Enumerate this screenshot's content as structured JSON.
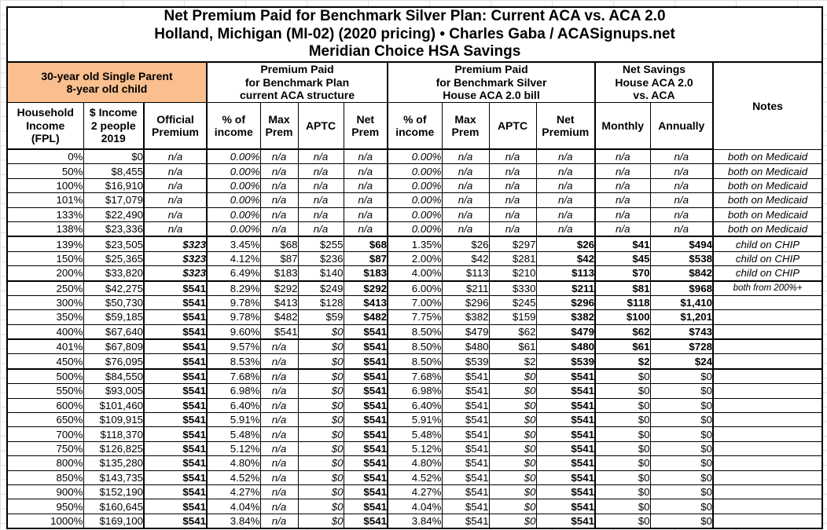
{
  "colors": {
    "orange": "#FABF8F",
    "yellow": "#FFFF99",
    "pink": "#F47FC3",
    "green": "#CCF2CC",
    "border": "#000000",
    "gridline": "#DEDEDE"
  },
  "chart_data": {
    "type": "table",
    "title": "Net Premium Paid for Benchmark Silver Plan: Current ACA vs. ACA 2.0",
    "subtitle": "Holland, Michigan (MI-02) (2020 pricing) • Charles Gaba / ACASignups.net",
    "subtitle2": "Meridian Choice HSA Savings",
    "group_headers": {
      "person": "30-year old Single Parent\n8-year old child",
      "current_aca": "Premium Paid\nfor Benchmark Plan\ncurrent ACA structure",
      "aca20": "Premium Paid\nfor Benchmark Silver\nHouse ACA 2.0 bill",
      "savings": "Net Savings\nHouse ACA 2.0\nvs. ACA",
      "notes": "Notes"
    },
    "column_headers": [
      "Household\nIncome\n(FPL)",
      "$ Income\n2 people\n2019",
      "Official\nPremium",
      "% of\nincome",
      "Max\nPrem",
      "APTC",
      "Net\nPrem",
      "% of\nincome",
      "Max\nPrem",
      "APTC",
      "Net\nPremium",
      "Monthly",
      "Annually"
    ],
    "column_keys": [
      "fpl",
      "income",
      "official-premium",
      "aca-pct-income",
      "aca-max-prem",
      "aca-aptc",
      "aca-net-prem",
      "aca2-pct-income",
      "aca2-max-prem",
      "aca2-aptc",
      "aca2-net-premium",
      "savings-monthly",
      "savings-annually",
      "notes"
    ],
    "rows": [
      {
        "cells": [
          "0%",
          "$0",
          "n/a",
          "0.00%",
          "n/a",
          "n/a",
          "n/a",
          "0.00%",
          "n/a",
          "n/a",
          "n/a",
          "n/a",
          "n/a",
          "both on Medicaid"
        ],
        "styles": [
          "w:n",
          "w:n",
          "y:i",
          "w:i",
          "w:i",
          "w:i",
          "y:i",
          "w:i",
          "w:i",
          "w:i",
          "y:i",
          "w:i",
          "w:i",
          "w:i"
        ],
        "thick_top": false
      },
      {
        "cells": [
          "50%",
          "$8,455",
          "n/a",
          "0.00%",
          "n/a",
          "n/a",
          "n/a",
          "0.00%",
          "n/a",
          "n/a",
          "n/a",
          "n/a",
          "n/a",
          "both on Medicaid"
        ],
        "styles": [
          "w:n",
          "w:n",
          "y:i",
          "w:i",
          "w:i",
          "w:i",
          "y:i",
          "w:i",
          "w:i",
          "w:i",
          "y:i",
          "w:i",
          "w:i",
          "w:i"
        ],
        "thick_top": false
      },
      {
        "cells": [
          "100%",
          "$16,910",
          "n/a",
          "0.00%",
          "n/a",
          "n/a",
          "n/a",
          "0.00%",
          "n/a",
          "n/a",
          "n/a",
          "n/a",
          "n/a",
          "both on Medicaid"
        ],
        "styles": [
          "w:n",
          "w:n",
          "y:i",
          "w:i",
          "w:i",
          "w:i",
          "y:i",
          "w:i",
          "w:i",
          "w:i",
          "y:i",
          "w:i",
          "w:i",
          "w:i"
        ],
        "thick_top": false
      },
      {
        "cells": [
          "101%",
          "$17,079",
          "n/a",
          "0.00%",
          "n/a",
          "n/a",
          "n/a",
          "0.00%",
          "n/a",
          "n/a",
          "n/a",
          "n/a",
          "n/a",
          "both on Medicaid"
        ],
        "styles": [
          "w:n",
          "w:n",
          "y:i",
          "w:i",
          "w:i",
          "w:i",
          "y:i",
          "w:i",
          "w:i",
          "w:i",
          "y:i",
          "w:i",
          "w:i",
          "w:i"
        ],
        "thick_top": false
      },
      {
        "cells": [
          "133%",
          "$22,490",
          "n/a",
          "0.00%",
          "n/a",
          "n/a",
          "n/a",
          "0.00%",
          "n/a",
          "n/a",
          "n/a",
          "n/a",
          "n/a",
          "both on Medicaid"
        ],
        "styles": [
          "w:n",
          "w:n",
          "y:i",
          "w:i",
          "w:i",
          "w:i",
          "y:i",
          "w:i",
          "w:i",
          "w:i",
          "y:i",
          "w:i",
          "w:i",
          "w:i"
        ],
        "thick_top": false
      },
      {
        "cells": [
          "138%",
          "$23,336",
          "n/a",
          "0.00%",
          "n/a",
          "n/a",
          "n/a",
          "0.00%",
          "n/a",
          "n/a",
          "n/a",
          "n/a",
          "n/a",
          "both on Medicaid"
        ],
        "styles": [
          "w:n",
          "w:n",
          "y:i",
          "w:i",
          "w:i",
          "w:i",
          "y:i",
          "w:i",
          "w:i",
          "w:i",
          "y:i",
          "w:i",
          "w:i",
          "w:i"
        ],
        "thick_top": false
      },
      {
        "cells": [
          "139%",
          "$23,505",
          "$323",
          "3.45%",
          "$68",
          "$255",
          "$68",
          "1.35%",
          "$26",
          "$297",
          "$26",
          "$41",
          "$494",
          "child on CHIP"
        ],
        "styles": [
          "w:n",
          "w:n",
          "y:bi",
          "w:n",
          "w:n",
          "w:n",
          "y:b",
          "w:n",
          "w:n",
          "w:n",
          "y:b",
          "g:b",
          "g:b",
          "w:i"
        ],
        "thick_top": true
      },
      {
        "cells": [
          "150%",
          "$25,365",
          "$323",
          "4.12%",
          "$87",
          "$236",
          "$87",
          "2.00%",
          "$42",
          "$281",
          "$42",
          "$45",
          "$538",
          "child on CHIP"
        ],
        "styles": [
          "w:n",
          "w:n",
          "y:bi",
          "w:n",
          "w:n",
          "w:n",
          "y:b",
          "w:n",
          "w:n",
          "w:n",
          "y:b",
          "g:b",
          "g:b",
          "w:i"
        ],
        "thick_top": false
      },
      {
        "cells": [
          "200%",
          "$33,820",
          "$323",
          "6.49%",
          "$183",
          "$140",
          "$183",
          "4.00%",
          "$113",
          "$210",
          "$113",
          "$70",
          "$842",
          "child on CHIP"
        ],
        "styles": [
          "w:n",
          "w:n",
          "y:bi",
          "w:n",
          "w:n",
          "w:n",
          "y:b",
          "w:n",
          "w:n",
          "w:n",
          "y:b",
          "g:b",
          "g:b",
          "w:i"
        ],
        "thick_top": false
      },
      {
        "cells": [
          "250%",
          "$42,275",
          "$541",
          "8.29%",
          "$292",
          "$249",
          "$292",
          "6.00%",
          "$211",
          "$330",
          "$211",
          "$81",
          "$968",
          "both from 200%+"
        ],
        "styles": [
          "w:n",
          "w:n",
          "y:b",
          "w:n",
          "w:n",
          "w:n",
          "y:b",
          "w:n",
          "w:n",
          "w:n",
          "y:b",
          "g:b",
          "g:b",
          "w:is"
        ],
        "thick_top": true
      },
      {
        "cells": [
          "300%",
          "$50,730",
          "$541",
          "9.78%",
          "$413",
          "$128",
          "$413",
          "7.00%",
          "$296",
          "$245",
          "$296",
          "$118",
          "$1,410",
          ""
        ],
        "styles": [
          "w:n",
          "w:n",
          "y:b",
          "w:n",
          "w:n",
          "w:n",
          "y:b",
          "w:n",
          "w:n",
          "w:n",
          "y:b",
          "g:b",
          "g:b",
          "w:n"
        ],
        "thick_top": false
      },
      {
        "cells": [
          "350%",
          "$59,185",
          "$541",
          "9.78%",
          "$482",
          "$59",
          "$482",
          "7.75%",
          "$382",
          "$159",
          "$382",
          "$100",
          "$1,201",
          ""
        ],
        "styles": [
          "w:n",
          "w:n",
          "y:b",
          "w:n",
          "w:n",
          "w:n",
          "y:b",
          "w:n",
          "w:n",
          "w:n",
          "y:b",
          "g:b",
          "g:b",
          "w:n"
        ],
        "thick_top": false
      },
      {
        "cells": [
          "400%",
          "$67,640",
          "$541",
          "9.60%",
          "$541",
          "$0",
          "$541",
          "8.50%",
          "$479",
          "$62",
          "$479",
          "$62",
          "$743",
          ""
        ],
        "styles": [
          "w:n",
          "w:n",
          "y:b",
          "w:n",
          "w:n",
          "p:i",
          "y:b",
          "w:n",
          "w:n",
          "w:n",
          "y:b",
          "g:b",
          "g:b",
          "w:n"
        ],
        "thick_top": false
      },
      {
        "cells": [
          "401%",
          "$67,809",
          "$541",
          "9.57%",
          "n/a",
          "$0",
          "$541",
          "8.50%",
          "$480",
          "$61",
          "$480",
          "$61",
          "$728",
          ""
        ],
        "styles": [
          "w:n",
          "w:n",
          "y:b",
          "w:n",
          "w:i",
          "p:i",
          "y:b",
          "w:n",
          "w:n",
          "w:n",
          "y:b",
          "g:b",
          "g:b",
          "w:n"
        ],
        "thick_top": true
      },
      {
        "cells": [
          "450%",
          "$76,095",
          "$541",
          "8.53%",
          "n/a",
          "$0",
          "$541",
          "8.50%",
          "$539",
          "$2",
          "$539",
          "$2",
          "$24",
          ""
        ],
        "styles": [
          "w:n",
          "w:n",
          "y:b",
          "w:n",
          "w:i",
          "p:i",
          "y:b",
          "w:n",
          "w:n",
          "w:n",
          "y:b",
          "g:b",
          "g:b",
          "w:n"
        ],
        "thick_top": false
      },
      {
        "cells": [
          "500%",
          "$84,550",
          "$541",
          "7.68%",
          "n/a",
          "$0",
          "$541",
          "7.68%",
          "$541",
          "$0",
          "$541",
          "$0",
          "$0",
          ""
        ],
        "styles": [
          "w:n",
          "w:n",
          "y:b",
          "w:n",
          "w:i",
          "p:i",
          "y:b",
          "w:n",
          "w:n",
          "p:i",
          "y:b",
          "w:n",
          "w:n",
          "w:n"
        ],
        "thick_top": true
      },
      {
        "cells": [
          "550%",
          "$93,005",
          "$541",
          "6.98%",
          "n/a",
          "$0",
          "$541",
          "6.98%",
          "$541",
          "$0",
          "$541",
          "$0",
          "$0",
          ""
        ],
        "styles": [
          "w:n",
          "w:n",
          "y:b",
          "w:n",
          "w:i",
          "p:i",
          "y:b",
          "w:n",
          "w:n",
          "p:i",
          "y:b",
          "w:n",
          "w:n",
          "w:n"
        ],
        "thick_top": false
      },
      {
        "cells": [
          "600%",
          "$101,460",
          "$541",
          "6.40%",
          "n/a",
          "$0",
          "$541",
          "6.40%",
          "$541",
          "$0",
          "$541",
          "$0",
          "$0",
          ""
        ],
        "styles": [
          "w:n",
          "w:n",
          "y:b",
          "w:n",
          "w:i",
          "p:i",
          "y:b",
          "w:n",
          "w:n",
          "p:i",
          "y:b",
          "w:n",
          "w:n",
          "w:n"
        ],
        "thick_top": false
      },
      {
        "cells": [
          "650%",
          "$109,915",
          "$541",
          "5.91%",
          "n/a",
          "$0",
          "$541",
          "5.91%",
          "$541",
          "$0",
          "$541",
          "$0",
          "$0",
          ""
        ],
        "styles": [
          "w:n",
          "w:n",
          "y:b",
          "w:n",
          "w:i",
          "p:i",
          "y:b",
          "w:n",
          "w:n",
          "p:i",
          "y:b",
          "w:n",
          "w:n",
          "w:n"
        ],
        "thick_top": false
      },
      {
        "cells": [
          "700%",
          "$118,370",
          "$541",
          "5.48%",
          "n/a",
          "$0",
          "$541",
          "5.48%",
          "$541",
          "$0",
          "$541",
          "$0",
          "$0",
          ""
        ],
        "styles": [
          "w:n",
          "w:n",
          "y:b",
          "w:n",
          "w:i",
          "p:i",
          "y:b",
          "w:n",
          "w:n",
          "p:i",
          "y:b",
          "w:n",
          "w:n",
          "w:n"
        ],
        "thick_top": false
      },
      {
        "cells": [
          "750%",
          "$126,825",
          "$541",
          "5.12%",
          "n/a",
          "$0",
          "$541",
          "5.12%",
          "$541",
          "$0",
          "$541",
          "$0",
          "$0",
          ""
        ],
        "styles": [
          "w:n",
          "w:n",
          "y:b",
          "w:n",
          "w:i",
          "p:i",
          "y:b",
          "w:n",
          "w:n",
          "p:i",
          "y:b",
          "w:n",
          "w:n",
          "w:n"
        ],
        "thick_top": false
      },
      {
        "cells": [
          "800%",
          "$135,280",
          "$541",
          "4.80%",
          "n/a",
          "$0",
          "$541",
          "4.80%",
          "$541",
          "$0",
          "$541",
          "$0",
          "$0",
          ""
        ],
        "styles": [
          "w:n",
          "w:n",
          "y:b",
          "w:n",
          "w:i",
          "p:i",
          "y:b",
          "w:n",
          "w:n",
          "p:i",
          "y:b",
          "w:n",
          "w:n",
          "w:n"
        ],
        "thick_top": false
      },
      {
        "cells": [
          "850%",
          "$143,735",
          "$541",
          "4.52%",
          "n/a",
          "$0",
          "$541",
          "4.52%",
          "$541",
          "$0",
          "$541",
          "$0",
          "$0",
          ""
        ],
        "styles": [
          "w:n",
          "w:n",
          "y:b",
          "w:n",
          "w:i",
          "p:i",
          "y:b",
          "w:n",
          "w:n",
          "p:i",
          "y:b",
          "w:n",
          "w:n",
          "w:n"
        ],
        "thick_top": false
      },
      {
        "cells": [
          "900%",
          "$152,190",
          "$541",
          "4.27%",
          "n/a",
          "$0",
          "$541",
          "4.27%",
          "$541",
          "$0",
          "$541",
          "$0",
          "$0",
          ""
        ],
        "styles": [
          "w:n",
          "w:n",
          "y:b",
          "w:n",
          "w:i",
          "p:i",
          "y:b",
          "w:n",
          "w:n",
          "p:i",
          "y:b",
          "w:n",
          "w:n",
          "w:n"
        ],
        "thick_top": false
      },
      {
        "cells": [
          "950%",
          "$160,645",
          "$541",
          "4.04%",
          "n/a",
          "$0",
          "$541",
          "4.04%",
          "$541",
          "$0",
          "$541",
          "$0",
          "$0",
          ""
        ],
        "styles": [
          "w:n",
          "w:n",
          "y:b",
          "w:n",
          "w:i",
          "p:i",
          "y:b",
          "w:n",
          "w:n",
          "p:i",
          "y:b",
          "w:n",
          "w:n",
          "w:n"
        ],
        "thick_top": false
      },
      {
        "cells": [
          "1000%",
          "$169,100",
          "$541",
          "3.84%",
          "n/a",
          "$0",
          "$541",
          "3.84%",
          "$541",
          "$0",
          "$541",
          "$0",
          "$0",
          ""
        ],
        "styles": [
          "w:n",
          "w:n",
          "y:b",
          "w:n",
          "w:i",
          "p:i",
          "y:b",
          "w:n",
          "w:n",
          "p:i",
          "y:b",
          "w:n",
          "w:n",
          "w:n"
        ],
        "thick_top": false
      }
    ]
  }
}
